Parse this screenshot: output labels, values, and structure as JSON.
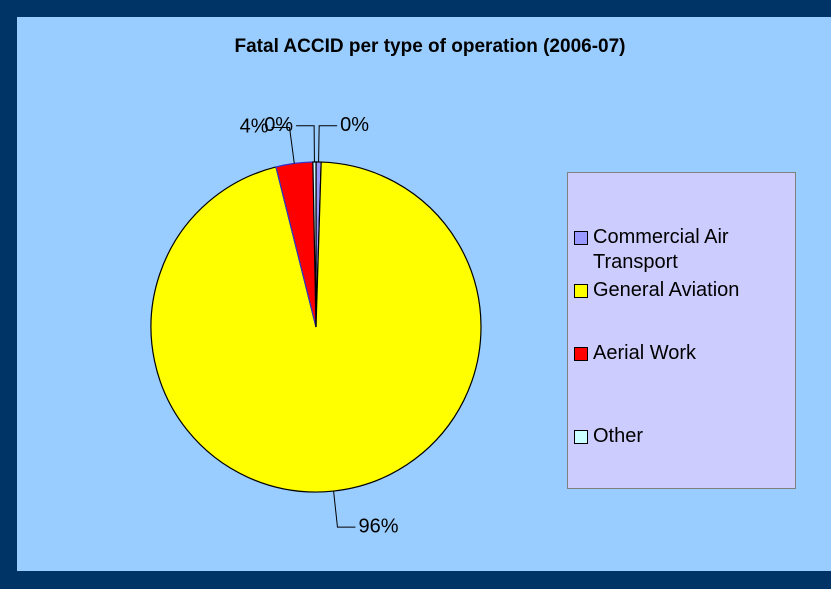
{
  "chart_data": {
    "type": "pie",
    "title": "Fatal ACCID per type of operation (2006-07)",
    "categories": [
      "Commercial Air Transport",
      "General Aviation",
      "Aerial Work",
      "Other"
    ],
    "values": [
      0.5,
      95.6,
      3.6,
      0.3
    ],
    "value_labels": [
      "0%",
      "96%",
      "4%",
      "0%"
    ],
    "colors": [
      "#9999ff",
      "#ffff00",
      "#ff0000",
      "#ccffff"
    ],
    "legend": "right"
  }
}
